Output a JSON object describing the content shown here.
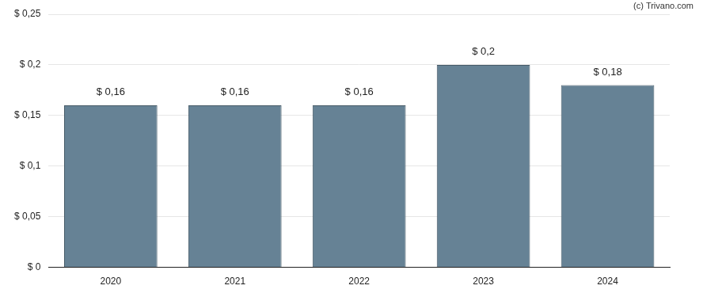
{
  "chart_data": {
    "type": "bar",
    "annotations": [
      "(c) Trivano.com"
    ],
    "categories": [
      "2020",
      "2021",
      "2022",
      "2023",
      "2024"
    ],
    "values": [
      0.16,
      0.16,
      0.16,
      0.2,
      0.18
    ],
    "value_labels": [
      "$ 0,16",
      "$ 0,16",
      "$ 0,16",
      "$ 0,2",
      "$ 0,18"
    ],
    "data_labels": true,
    "color": "#668295",
    "ylim": [
      0,
      0.25
    ],
    "yticks": [
      {
        "value": 0,
        "label": "$ 0"
      },
      {
        "value": 0.05,
        "label": "$ 0,05"
      },
      {
        "value": 0.1,
        "label": "$ 0,1"
      },
      {
        "value": 0.15,
        "label": "$ 0,15"
      },
      {
        "value": 0.2,
        "label": "$ 0,2"
      },
      {
        "value": 0.25,
        "label": "$ 0,25"
      }
    ],
    "grid": true
  }
}
